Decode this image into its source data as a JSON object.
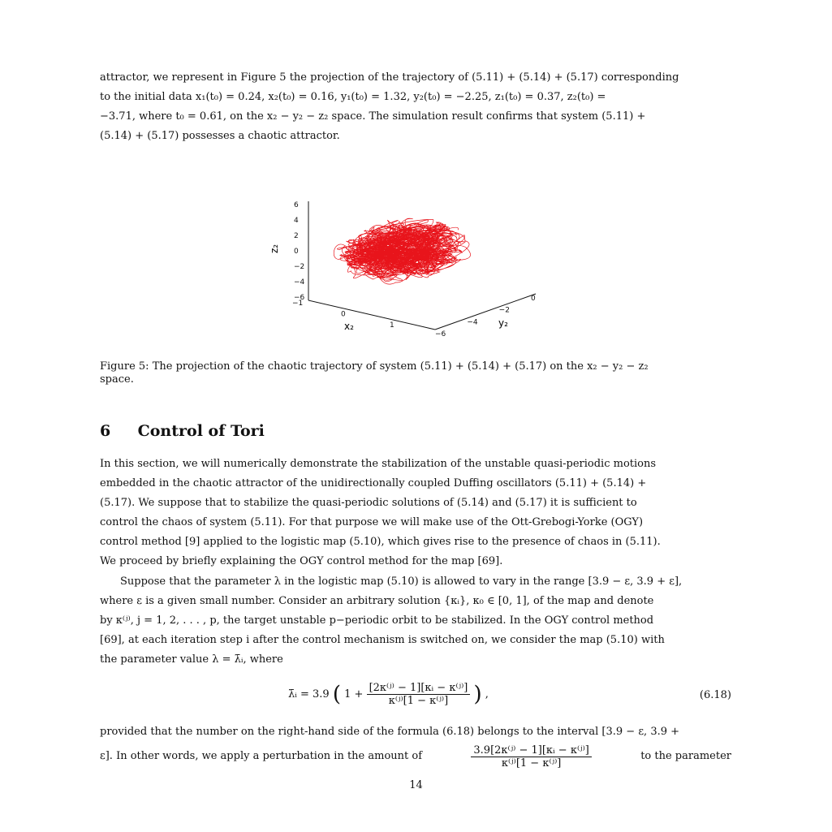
{
  "top_paragraph": {
    "lines": [
      "attractor, we represent in Figure 5 the projection of the trajectory of (5.11) + (5.14) + (5.17) corresponding",
      "to the initial data x₁(t₀) = 0.24, x₂(t₀) = 0.16, y₁(t₀) = 1.32, y₂(t₀) = −2.25, z₁(t₀) = 0.37, z₂(t₀) =",
      "−3.71, where t₀ = 0.61, on the x₂ − y₂ − z₂ space. The simulation result confirms that system (5.11) +",
      "(5.14) + (5.17) possesses a chaotic attractor."
    ]
  },
  "figure": {
    "axis_labels": {
      "x": "x₂",
      "y": "y₂",
      "z": "z₂"
    },
    "z_ticks": [
      "6",
      "4",
      "2",
      "0",
      "−2",
      "−4",
      "−6"
    ],
    "x_ticks": [
      "−1",
      "0",
      "1"
    ],
    "y_ticks": [
      "−6",
      "−4",
      "−2",
      "0"
    ],
    "trajectory_color": "#e8141b"
  },
  "caption": {
    "line1": "Figure 5: The projection of the chaotic trajectory of system (5.11) + (5.14) + (5.17) on the x₂ − y₂ − z₂",
    "line2": "space."
  },
  "section": {
    "number": "6",
    "title": "Control of Tori"
  },
  "section_paragraph": {
    "lines": [
      "In this section, we will numerically demonstrate the stabilization of the unstable quasi-periodic motions",
      "embedded in the chaotic attractor of the unidirectionally coupled Duffing oscillators (5.11) + (5.14) +",
      "(5.17). We suppose that to stabilize the quasi-periodic solutions of (5.14) and (5.17) it is sufficient to",
      "control the chaos of system (5.11). For that purpose we will make use of the Ott-Grebogi-Yorke (OGY)",
      "control method [9] applied to the logistic map (5.10), which gives rise to the presence of chaos in (5.11).",
      "We proceed by briefly explaining the OGY control method for the map [69]."
    ]
  },
  "suppose_paragraph": {
    "lines": [
      "Suppose that the parameter λ in the logistic map (5.10) is allowed to vary in the range [3.9 − ε, 3.9 + ε],",
      "where ε is a given small number. Consider an arbitrary solution {κᵢ}, κ₀ ∈ [0, 1], of the map and denote",
      "by κ⁽ʲ⁾, j = 1, 2, . . . , p, the target unstable p−periodic orbit to be stabilized. In the OGY control method",
      "[69], at each iteration step i after the control mechanism is switched on, we consider the map (5.10) with",
      "the parameter value λ = λ̄ᵢ, where"
    ]
  },
  "equation": {
    "lhs": "λ̄ᵢ = 3.9",
    "one_plus": "1 +",
    "numerator": "[2κ⁽ʲ⁾ − 1][κᵢ − κ⁽ʲ⁾]",
    "denominator": "κ⁽ʲ⁾[1 − κ⁽ʲ⁾]",
    "trailing": ",",
    "label": "(6.18)"
  },
  "final_paragraph": {
    "line1": "provided that the number on the right-hand side of the formula (6.18) belongs to the interval [3.9 − ε, 3.9 +",
    "line2_start": "ε]. In other words, we apply a perturbation in the amount of",
    "frac_numerator": "3.9[2κ⁽ʲ⁾ − 1][κᵢ − κ⁽ʲ⁾]",
    "frac_denominator": "κ⁽ʲ⁾[1 − κ⁽ʲ⁾]",
    "line2_end": "to the parameter"
  },
  "page_number": "14"
}
